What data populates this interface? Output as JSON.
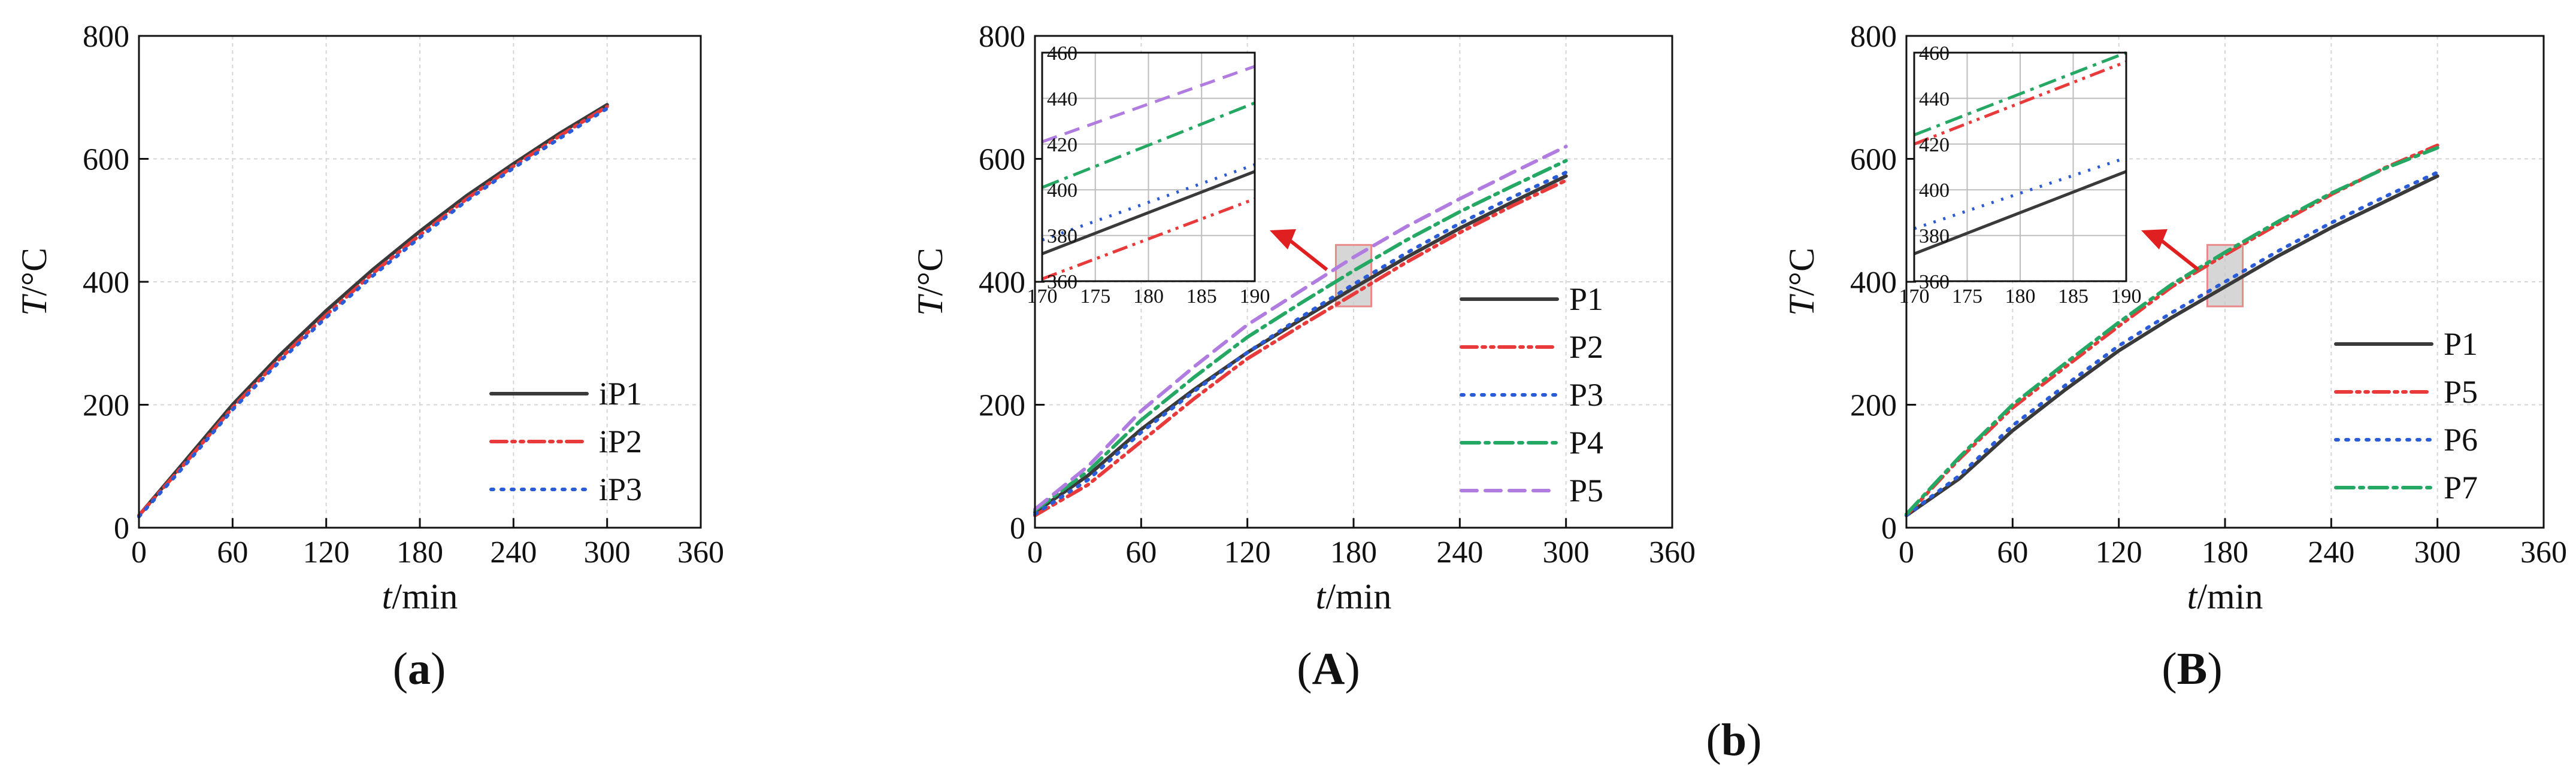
{
  "colors": {
    "dark": "#3a3a3a",
    "red": "#e83a3a",
    "blue": "#2b5cd8",
    "green": "#26a865",
    "purple": "#b07ce0",
    "grid": "#d6d6d6",
    "highlight": "#cccccc",
    "highlight_border": "#e88a8a",
    "arrow": "#e02020"
  },
  "chart_data": [
    {
      "id": "a",
      "type": "line",
      "caption": {
        "open": "(",
        "letter": "a",
        "close": ")"
      },
      "xlabel": {
        "var": "t",
        "unit": "/min"
      },
      "ylabel": {
        "var": "T",
        "unit": "/°C"
      },
      "xlim": [
        0,
        360
      ],
      "ylim": [
        0,
        800
      ],
      "xticks": [
        0,
        60,
        120,
        180,
        240,
        300,
        360
      ],
      "yticks": [
        0,
        200,
        400,
        600,
        800
      ],
      "grid": true,
      "legend_position": "bottom-right",
      "series": [
        {
          "name": "iP1",
          "style": "solid",
          "color_key": "dark",
          "x": [
            0,
            30,
            60,
            90,
            120,
            150,
            180,
            210,
            240,
            270,
            300
          ],
          "y": [
            20,
            110,
            200,
            280,
            353,
            420,
            482,
            540,
            592,
            642,
            688
          ]
        },
        {
          "name": "iP2",
          "style": "dashdotdot",
          "color_key": "red",
          "x": [
            0,
            30,
            60,
            90,
            120,
            150,
            180,
            210,
            240,
            270,
            300
          ],
          "y": [
            20,
            106,
            195,
            274,
            346,
            414,
            476,
            535,
            588,
            638,
            685
          ]
        },
        {
          "name": "iP3",
          "style": "dotted",
          "color_key": "blue",
          "x": [
            0,
            30,
            60,
            90,
            120,
            150,
            180,
            210,
            240,
            270,
            300
          ],
          "y": [
            18,
            103,
            192,
            270,
            342,
            410,
            472,
            532,
            585,
            634,
            682
          ]
        }
      ]
    },
    {
      "id": "A",
      "type": "line",
      "caption": {
        "open": "(",
        "letter": "A",
        "close": ")"
      },
      "xlabel": {
        "var": "t",
        "unit": "/min"
      },
      "ylabel": {
        "var": "T",
        "unit": "/°C"
      },
      "xlim": [
        0,
        360
      ],
      "ylim": [
        0,
        800
      ],
      "xticks": [
        0,
        60,
        120,
        180,
        240,
        300,
        360
      ],
      "yticks": [
        0,
        200,
        400,
        600,
        800
      ],
      "grid": true,
      "legend_position": "bottom-right",
      "highlight": {
        "x": [
          170,
          190
        ],
        "y": [
          360,
          460
        ]
      },
      "series": [
        {
          "name": "P1",
          "style": "solid",
          "color_key": "dark",
          "x": [
            0,
            30,
            60,
            90,
            120,
            150,
            180,
            210,
            240,
            270,
            300
          ],
          "y": [
            25,
            85,
            160,
            225,
            285,
            338,
            390,
            440,
            487,
            530,
            572
          ]
        },
        {
          "name": "P2",
          "style": "dashdotdot",
          "color_key": "red",
          "x": [
            0,
            30,
            60,
            90,
            120,
            150,
            180,
            210,
            240,
            270,
            300
          ],
          "y": [
            20,
            70,
            140,
            210,
            275,
            328,
            380,
            432,
            480,
            524,
            565
          ]
        },
        {
          "name": "P3",
          "style": "dotted",
          "color_key": "blue",
          "x": [
            0,
            30,
            60,
            90,
            120,
            150,
            180,
            210,
            240,
            270,
            300
          ],
          "y": [
            22,
            78,
            155,
            222,
            285,
            342,
            396,
            447,
            495,
            538,
            578
          ]
        },
        {
          "name": "P4",
          "style": "dashdot",
          "color_key": "green",
          "x": [
            0,
            30,
            60,
            90,
            120,
            150,
            180,
            210,
            240,
            270,
            300
          ],
          "y": [
            28,
            92,
            175,
            245,
            310,
            365,
            418,
            468,
            514,
            556,
            597
          ]
        },
        {
          "name": "P5",
          "style": "dashed",
          "color_key": "purple",
          "x": [
            0,
            30,
            60,
            90,
            120,
            150,
            180,
            210,
            240,
            270,
            300
          ],
          "y": [
            30,
            100,
            190,
            262,
            330,
            385,
            440,
            490,
            535,
            578,
            620
          ]
        }
      ],
      "inset": {
        "xlim": [
          170,
          190
        ],
        "ylim": [
          360,
          460
        ],
        "xticks": [
          170,
          175,
          180,
          185,
          190
        ],
        "yticks": [
          360,
          380,
          400,
          420,
          440,
          460
        ],
        "series": [
          {
            "name": "P1",
            "y": [
              372,
              408
            ]
          },
          {
            "name": "P2",
            "y": [
              361,
              396
            ]
          },
          {
            "name": "P3",
            "y": [
              378,
              411
            ]
          },
          {
            "name": "P4",
            "y": [
              401,
              438
            ]
          },
          {
            "name": "P5",
            "y": [
              421,
              454
            ]
          }
        ]
      }
    },
    {
      "id": "B",
      "type": "line",
      "caption": {
        "open": "(",
        "letter": "B",
        "close": ")"
      },
      "xlabel": {
        "var": "t",
        "unit": "/min"
      },
      "ylabel": {
        "var": "T",
        "unit": "/°C"
      },
      "xlim": [
        0,
        360
      ],
      "ylim": [
        0,
        800
      ],
      "xticks": [
        0,
        60,
        120,
        180,
        240,
        300,
        360
      ],
      "yticks": [
        0,
        200,
        400,
        600,
        800
      ],
      "grid": true,
      "legend_position": "bottom-right",
      "highlight": {
        "x": [
          170,
          190
        ],
        "y": [
          360,
          460
        ]
      },
      "series": [
        {
          "name": "P1",
          "style": "solid",
          "color_key": "dark",
          "x": [
            0,
            30,
            60,
            90,
            120,
            150,
            180,
            210,
            240,
            270,
            300
          ],
          "y": [
            20,
            80,
            158,
            225,
            288,
            342,
            392,
            442,
            488,
            530,
            572
          ]
        },
        {
          "name": "P5",
          "style": "dashdotdot",
          "color_key": "red",
          "x": [
            0,
            30,
            60,
            90,
            120,
            150,
            180,
            210,
            240,
            270,
            300
          ],
          "y": [
            20,
            112,
            195,
            262,
            328,
            392,
            444,
            494,
            542,
            585,
            622
          ]
        },
        {
          "name": "P6",
          "style": "dotted",
          "color_key": "blue",
          "x": [
            0,
            30,
            60,
            90,
            120,
            150,
            180,
            210,
            240,
            270,
            300
          ],
          "y": [
            20,
            85,
            166,
            232,
            296,
            350,
            400,
            450,
            496,
            538,
            578
          ]
        },
        {
          "name": "P7",
          "style": "dashdot",
          "color_key": "green",
          "x": [
            0,
            30,
            60,
            90,
            120,
            150,
            180,
            210,
            240,
            270,
            300
          ],
          "y": [
            22,
            115,
            200,
            268,
            334,
            396,
            448,
            498,
            544,
            584,
            618
          ]
        }
      ],
      "inset": {
        "xlim": [
          170,
          190
        ],
        "ylim": [
          360,
          460
        ],
        "xticks": [
          170,
          175,
          180,
          185,
          190
        ],
        "yticks": [
          360,
          380,
          400,
          420,
          440,
          460
        ],
        "series": [
          {
            "name": "P1",
            "y": [
              372,
              408
            ]
          },
          {
            "name": "P5",
            "y": [
              420,
              456
            ]
          },
          {
            "name": "P6",
            "y": [
              383,
              414
            ]
          },
          {
            "name": "P7",
            "y": [
              424,
              460
            ]
          }
        ]
      }
    }
  ],
  "group_caption": {
    "open": "(",
    "letter": "b",
    "close": ")"
  }
}
